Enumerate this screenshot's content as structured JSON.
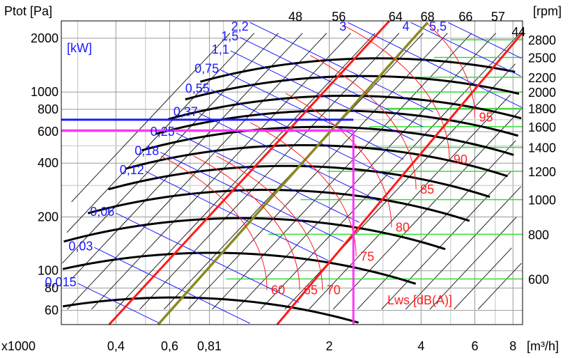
{
  "chart_data": {
    "type": "line",
    "title": "",
    "xlabel": "[m³/h]",
    "x_multiplier": "x1000",
    "ylabel": "Ptot [Pa]",
    "y_scale": "log",
    "x_scale": "log",
    "xlim": [
      0.265,
      8.6
    ],
    "ylim": [
      50,
      2500
    ],
    "grid": true,
    "x_ticks": [
      {
        "value": 0.4,
        "label": "0,4"
      },
      {
        "value": 0.6,
        "label": "0,6"
      },
      {
        "value": 0.81,
        "label": "0,81"
      },
      {
        "value": 2,
        "label": "2"
      },
      {
        "value": 4,
        "label": "4"
      },
      {
        "value": 6,
        "label": "6"
      },
      {
        "value": 8,
        "label": "8"
      }
    ],
    "y_ticks": [
      {
        "value": 2000,
        "label": "2000"
      },
      {
        "value": 1000,
        "label": "1000"
      },
      {
        "value": 800,
        "label": "800"
      },
      {
        "value": 600,
        "label": "600"
      },
      {
        "value": 400,
        "label": "400"
      },
      {
        "value": 200,
        "label": "200"
      },
      {
        "value": 100,
        "label": "100"
      },
      {
        "value": 80,
        "label": "80"
      },
      {
        "value": 60,
        "label": "60"
      }
    ],
    "rpm_axis": {
      "label": "[rpm]",
      "ticks": [
        {
          "value": 2800,
          "pressure": 1960
        },
        {
          "value": 2500,
          "pressure": 1560
        },
        {
          "value": 2200,
          "pressure": 1210
        },
        {
          "value": 2000,
          "pressure": 1000
        },
        {
          "value": 1800,
          "pressure": 810
        },
        {
          "value": 1600,
          "pressure": 640
        },
        {
          "value": 1400,
          "pressure": 490
        },
        {
          "value": 1200,
          "pressure": 360
        },
        {
          "value": 1000,
          "pressure": 250
        },
        {
          "value": 800,
          "pressure": 160
        },
        {
          "value": 600,
          "pressure": 90
        }
      ]
    },
    "power_label": "[kW]",
    "power_lines": [
      {
        "label": "0,015",
        "x": 0.3,
        "y": 85
      },
      {
        "label": "0,03",
        "x": 0.34,
        "y": 135
      },
      {
        "label": "0,06",
        "x": 0.4,
        "y": 210
      },
      {
        "label": "0,12",
        "x": 0.5,
        "y": 360
      },
      {
        "label": "0,18",
        "x": 0.56,
        "y": 460
      },
      {
        "label": "0,25",
        "x": 0.63,
        "y": 590
      },
      {
        "label": "0,37",
        "x": 0.75,
        "y": 760
      },
      {
        "label": "0,55",
        "x": 0.82,
        "y": 1030
      },
      {
        "label": "0,75",
        "x": 0.88,
        "y": 1330
      },
      {
        "label": "1,1",
        "x": 0.95,
        "y": 1700
      },
      {
        "label": "1,5",
        "x": 1.02,
        "y": 2020
      },
      {
        "label": "2,2",
        "x": 1.1,
        "y": 2450
      },
      {
        "label": "3",
        "x": 2.3,
        "y": 2450
      },
      {
        "label": "4",
        "x": 3.7,
        "y": 2450
      },
      {
        "label": "5,5",
        "x": 4.9,
        "y": 2450
      }
    ],
    "efficiency_lines": [
      {
        "label": "48",
        "x": 1.55,
        "y": 2350,
        "slope": 1.0
      },
      {
        "label": "56",
        "x": 2.15,
        "y": 2350,
        "slope": 1.0
      },
      {
        "label": "64",
        "x": 3.3,
        "y": 2350,
        "slope": 1.0
      },
      {
        "label": "68",
        "x": 4.2,
        "y": 2350,
        "slope": 1.0
      },
      {
        "label": "66",
        "x": 5.6,
        "y": 2350,
        "slope": 1.0
      },
      {
        "label": "57",
        "x": 7.15,
        "y": 2350,
        "slope": 1.0
      },
      {
        "label": "44",
        "x": 8.35,
        "y": 2050,
        "slope": 1.0
      }
    ],
    "sound_levels": {
      "label": "Lws [dB(A)]",
      "values": [
        {
          "label": "60",
          "x": 1.25,
          "y": 78
        },
        {
          "label": "65",
          "x": 1.6,
          "y": 78
        },
        {
          "label": "70",
          "x": 1.9,
          "y": 78
        },
        {
          "label": "75",
          "x": 2.45,
          "y": 120
        },
        {
          "label": "80",
          "x": 3.2,
          "y": 175
        },
        {
          "label": "85",
          "x": 3.85,
          "y": 285
        },
        {
          "label": "90",
          "x": 4.95,
          "y": 420
        },
        {
          "label": "95",
          "x": 6.0,
          "y": 720
        }
      ]
    },
    "operating_point": {
      "flow": 2.4,
      "pressure": 610,
      "power_pressure": 700
    }
  }
}
